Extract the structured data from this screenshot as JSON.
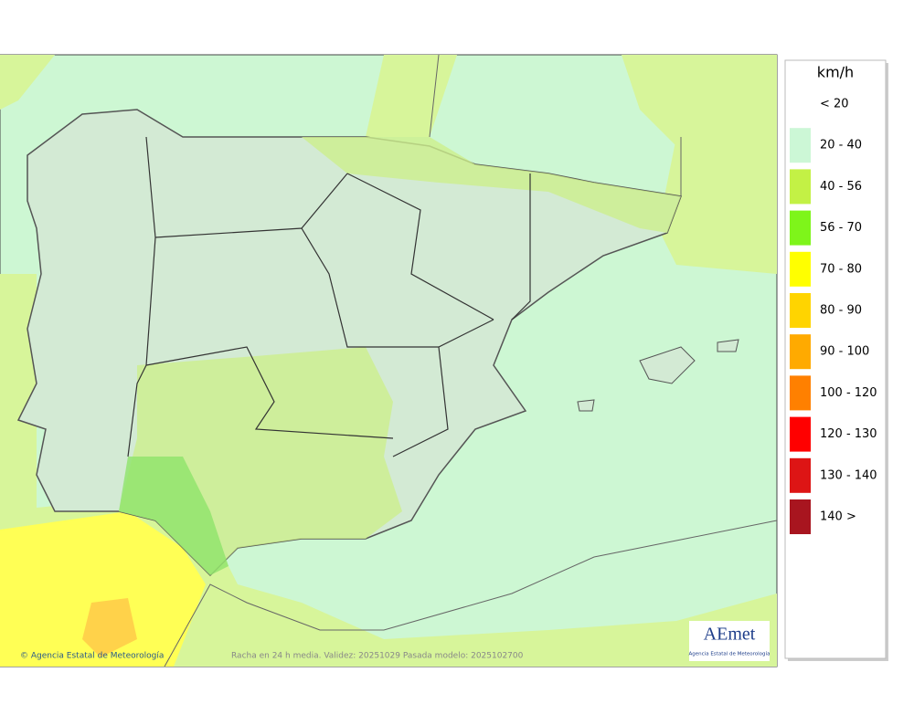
{
  "map": {
    "credit": "© Agencia Estatal de Meteorología",
    "caption": "Racha en 24 h media. Validez: 20251029 Pasada modelo: 2025102700",
    "logo": {
      "name": "AEmet",
      "subtitle": "Agencia Estatal de Meteorología"
    }
  },
  "legend": {
    "unit": "km/h",
    "items": [
      {
        "label": "< 20",
        "color": "#ffffff"
      },
      {
        "label": "20 - 40",
        "color": "#ccf7d6"
      },
      {
        "label": "40 - 56",
        "color": "#c3f145"
      },
      {
        "label": "56 - 70",
        "color": "#7ef51a"
      },
      {
        "label": "70 - 80",
        "color": "#ffff00"
      },
      {
        "label": "80 - 90",
        "color": "#ffd400"
      },
      {
        "label": "90 - 100",
        "color": "#ffaa00"
      },
      {
        "label": "100 - 120",
        "color": "#ff8000"
      },
      {
        "label": "120 - 130",
        "color": "#ff0000"
      },
      {
        "label": "130 - 140",
        "color": "#dd1515"
      },
      {
        "label": "140 >",
        "color": "#a8151f"
      }
    ]
  }
}
